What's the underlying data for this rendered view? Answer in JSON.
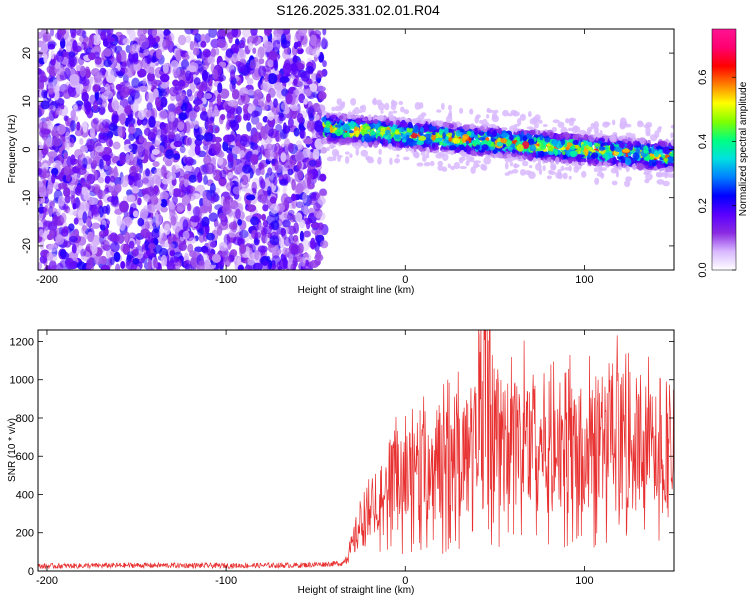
{
  "title": "S126.2025.331.02.01.R04",
  "chart_data": [
    {
      "type": "heatmap",
      "xlabel": "Height of straight line (km)",
      "ylabel": "Frequency (Hz)",
      "xlim": [
        -205,
        150
      ],
      "ylim": [
        -25,
        25
      ],
      "xticks": [
        -200,
        -100,
        0,
        100
      ],
      "yticks": [
        -20,
        -10,
        0,
        10,
        20
      ],
      "colorbar": {
        "label": "Normalized spectral amplitude",
        "range": [
          0.0,
          0.75
        ],
        "ticks": [
          "0.0",
          "0.2",
          "0.4",
          "0.6"
        ],
        "tick_values": [
          0.0,
          0.2,
          0.4,
          0.6
        ],
        "colors": [
          "#ffffff",
          "#d8b8ff",
          "#8a2be2",
          "#5a00ff",
          "#0000ff",
          "#0080ff",
          "#00e0e0",
          "#00ff80",
          "#80ff00",
          "#ffff00",
          "#ff8000",
          "#ff0000",
          "#ff0070",
          "#ff1493"
        ]
      },
      "features": [
        {
          "region": "noise",
          "x_range": [
            -205,
            -45
          ],
          "freq_range": [
            -25,
            25
          ],
          "amplitude": 0.1
        },
        {
          "region": "signal",
          "x_range": [
            -45,
            150
          ],
          "freq_start": 4.5,
          "freq_end": -1.5,
          "band_halfwidth": 3,
          "peak_amplitude": 0.6
        }
      ],
      "grid": false
    },
    {
      "type": "line",
      "xlabel": "Height of straight line (km)",
      "ylabel": "SNR (10 * v/v)",
      "xlim": [
        -205,
        150
      ],
      "ylim": [
        0,
        1260
      ],
      "xticks": [
        -200,
        -100,
        0,
        100
      ],
      "yticks": [
        0,
        200,
        400,
        600,
        800,
        1000,
        1200
      ],
      "series": [
        {
          "color": "#e83030",
          "x": [
            -205,
            -150,
            -100,
            -60,
            -35,
            -30,
            -25,
            -20,
            -15,
            -10,
            -5,
            0,
            10,
            20,
            30,
            40,
            45,
            50,
            60,
            70,
            80,
            90,
            100,
            110,
            120,
            130,
            140,
            150
          ],
          "y": [
            25,
            30,
            28,
            30,
            40,
            120,
            250,
            320,
            380,
            420,
            450,
            470,
            520,
            580,
            600,
            640,
            1150,
            700,
            640,
            700,
            660,
            680,
            620,
            650,
            700,
            650,
            620,
            600
          ]
        }
      ],
      "grid": false
    }
  ]
}
